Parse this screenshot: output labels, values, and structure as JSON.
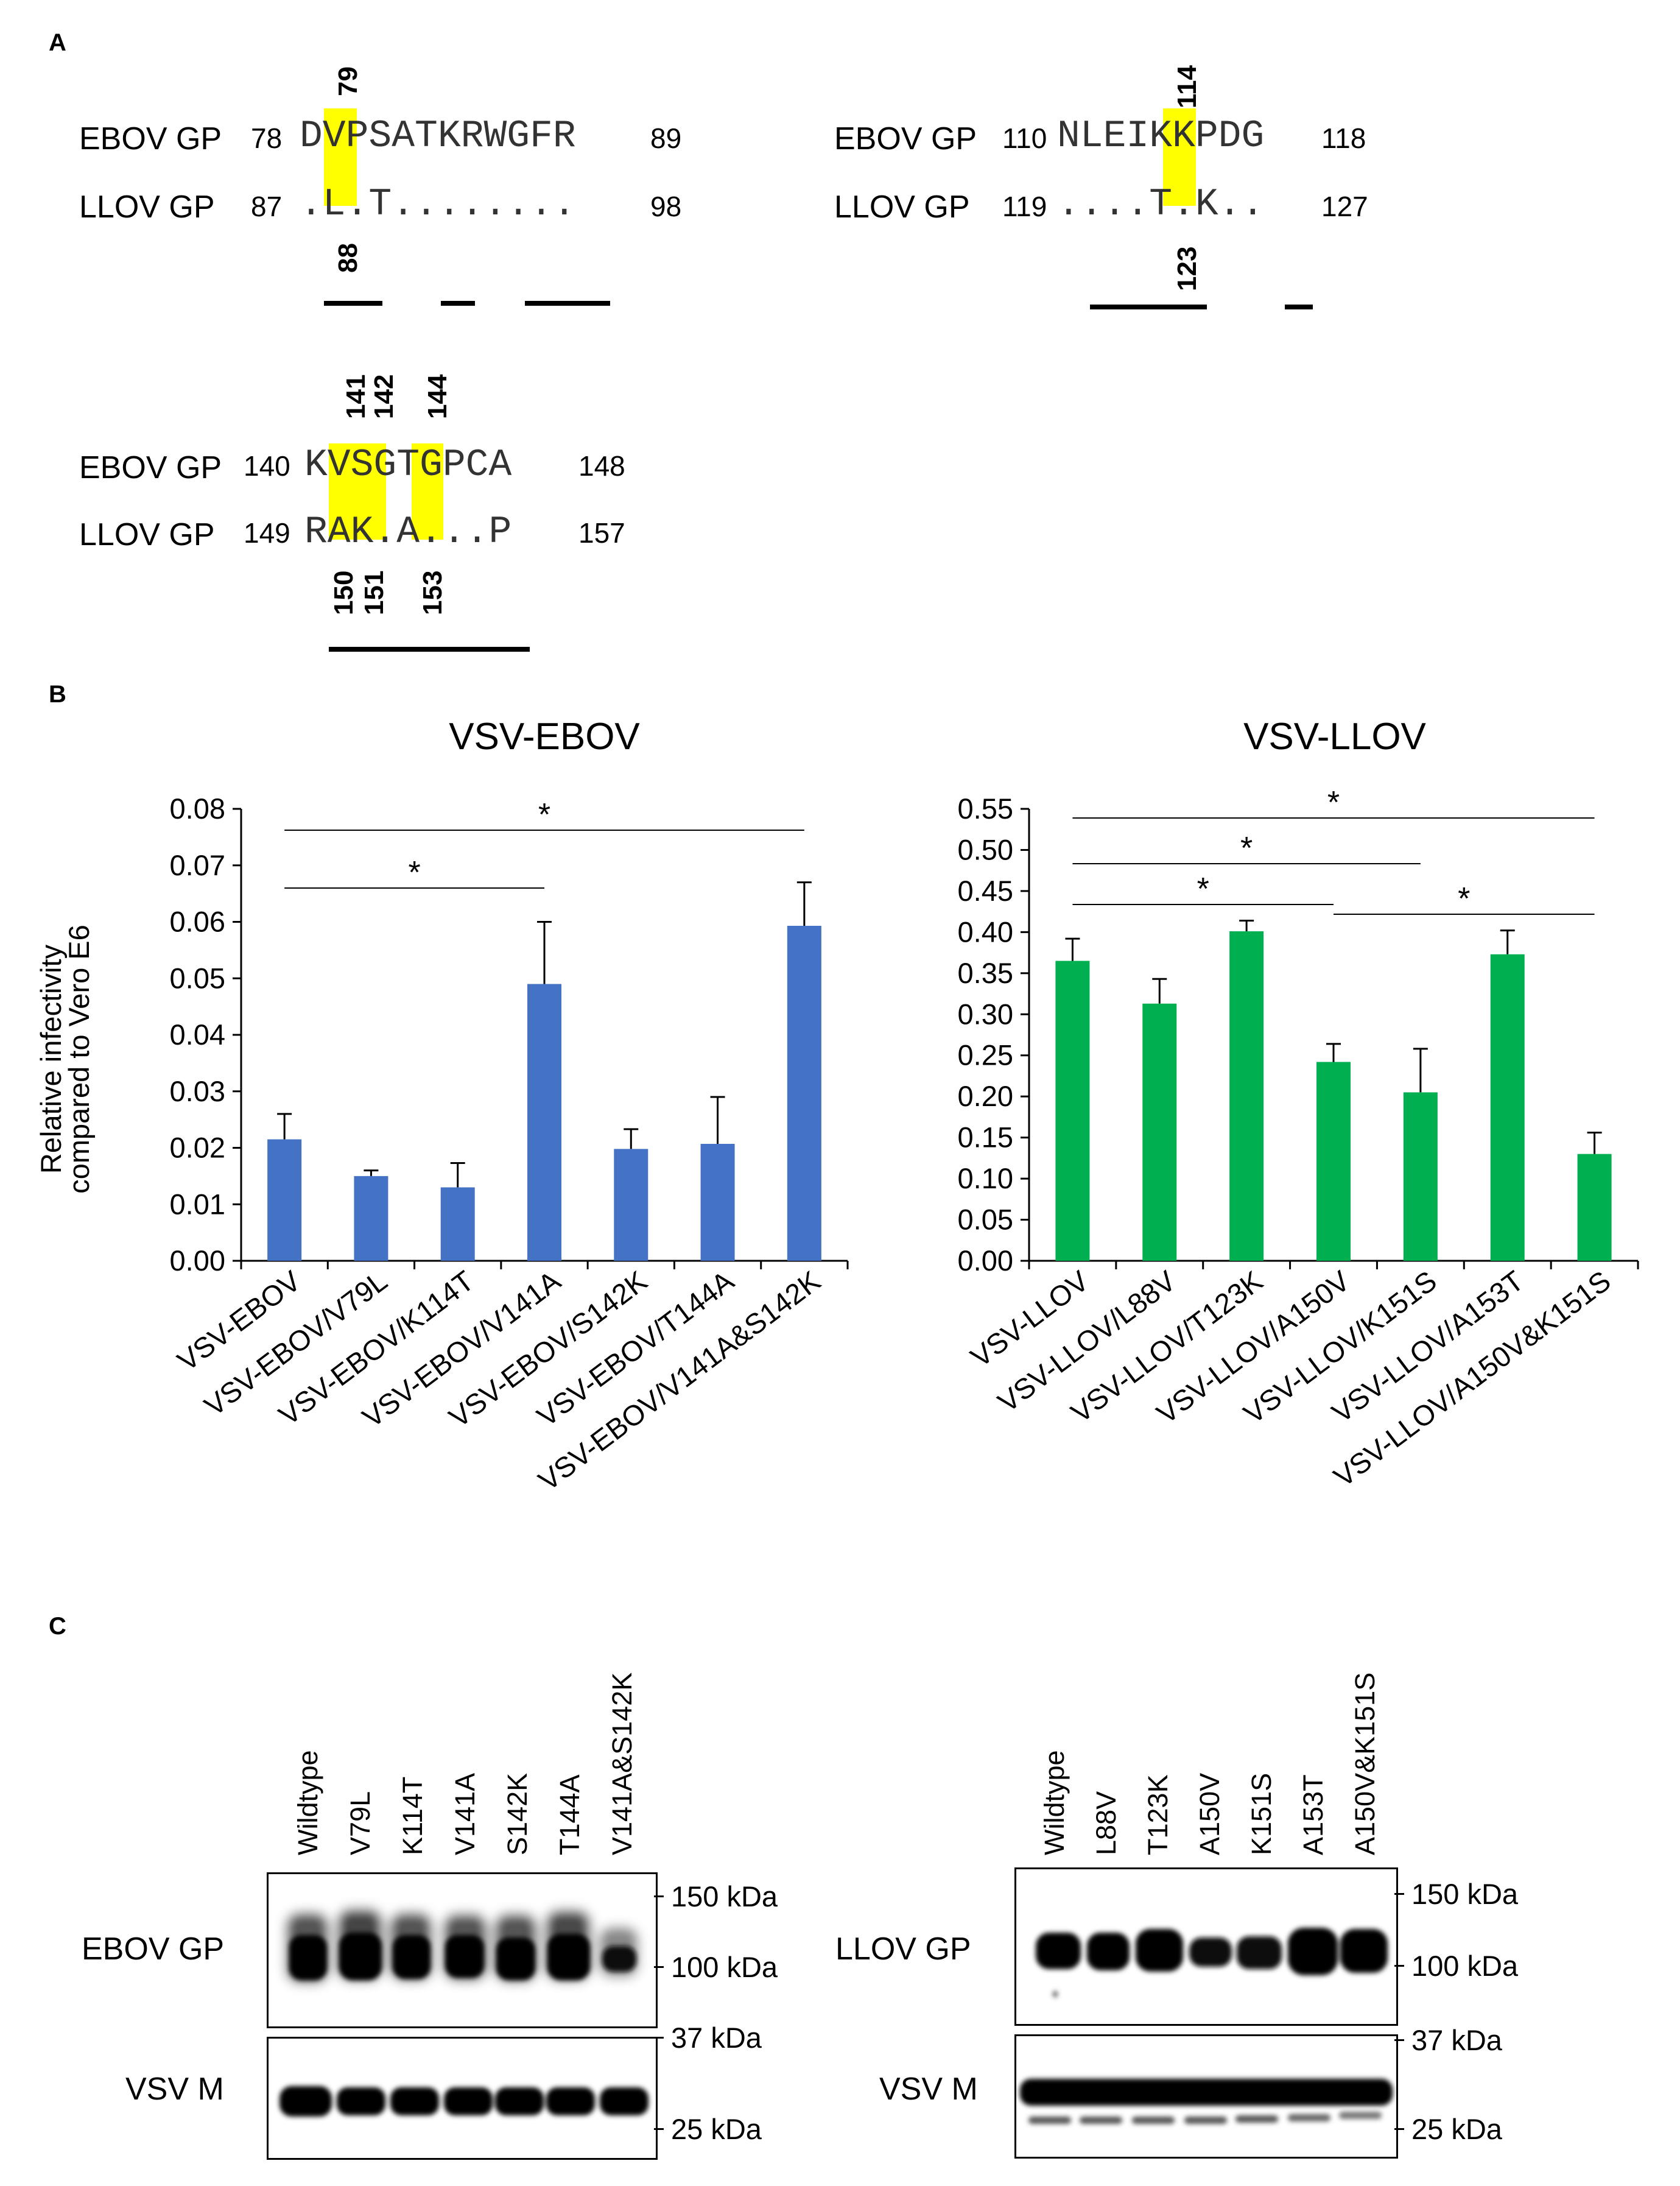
{
  "panels": {
    "a": "A",
    "b": "B",
    "c": "C"
  },
  "alignment": {
    "block1": {
      "row1": {
        "name": "EBOV GP",
        "start": "78",
        "seq": "DVPSATKRWGFR",
        "end": "89"
      },
      "row2": {
        "name": "LLOV GP",
        "start": "87",
        "seq": ".L.T........",
        "end": "98"
      },
      "top_pos": [
        "79"
      ],
      "bottom_pos": [
        "88"
      ]
    },
    "block2": {
      "row1": {
        "name": "EBOV GP",
        "start": "110",
        "seq": "NLEIKKPDG",
        "end": "118"
      },
      "row2": {
        "name": "LLOV GP",
        "start": "119",
        "seq": "....T.K..",
        "end": "127"
      },
      "top_pos": [
        "114"
      ],
      "bottom_pos": [
        "123"
      ]
    },
    "block3": {
      "row1": {
        "name": "EBOV GP",
        "start": "140",
        "seq": "KVSGTGPCA",
        "end": "148"
      },
      "row2": {
        "name": "LLOV GP",
        "start": "149",
        "seq": "RAK.A...P",
        "end": "157"
      },
      "top_pos": [
        "141",
        "142",
        "144"
      ],
      "bottom_pos": [
        "150",
        "151",
        "153"
      ]
    },
    "highlight_color": "#ffff00"
  },
  "chart_data": [
    {
      "type": "bar",
      "title": "VSV-EBOV",
      "ylabel": "Relative infectivity compared to Vero E6",
      "ylabel_lines": [
        "Relative infectivity",
        "compared to Vero E6"
      ],
      "ylim": [
        0,
        0.08
      ],
      "yticks": [
        "0.00",
        "0.01",
        "0.02",
        "0.03",
        "0.04",
        "0.05",
        "0.06",
        "0.07",
        "0.08"
      ],
      "categories": [
        "VSV-EBOV",
        "VSV-EBOV/V79L",
        "VSV-EBOV/K114T",
        "VSV-EBOV/V141A",
        "VSV-EBOV/S142K",
        "VSV-EBOV/T144A",
        "VSV-EBOV/V141A&S142K"
      ],
      "values": [
        0.0215,
        0.015,
        0.013,
        0.049,
        0.0198,
        0.0207,
        0.0593
      ],
      "errors": [
        0.0045,
        0.001,
        0.0043,
        0.011,
        0.0035,
        0.0083,
        0.0077
      ],
      "color": "#4472c4",
      "significance": [
        {
          "from": 0,
          "to": 3,
          "label": "*"
        },
        {
          "from": 0,
          "to": 6,
          "label": "*"
        }
      ]
    },
    {
      "type": "bar",
      "title": "VSV-LLOV",
      "ylim": [
        0,
        0.55
      ],
      "yticks": [
        "0.00",
        "0.05",
        "0.10",
        "0.15",
        "0.20",
        "0.25",
        "0.30",
        "0.35",
        "0.40",
        "0.45",
        "0.50",
        "0.55"
      ],
      "categories": [
        "VSV-LLOV",
        "VSV-LLOV/L88V",
        "VSV-LLOV/T123K",
        "VSV-LLOV/A150V",
        "VSV-LLOV/K151S",
        "VSV-LLOV/A153T",
        "VSV-LLOV/A150V&K151S"
      ],
      "values": [
        0.365,
        0.313,
        0.401,
        0.242,
        0.205,
        0.373,
        0.13
      ],
      "errors": [
        0.027,
        0.03,
        0.013,
        0.022,
        0.053,
        0.029,
        0.026
      ],
      "color": "#00b050",
      "significance": [
        {
          "from": 0,
          "to": 3,
          "label": "*"
        },
        {
          "from": 0,
          "to": 4,
          "label": "*"
        },
        {
          "from": 0,
          "to": 6,
          "label": "*"
        },
        {
          "from": 3,
          "to": 6,
          "label": "*"
        }
      ]
    }
  ],
  "blots": {
    "left": {
      "lanes": [
        "Wildtype",
        "V79L",
        "K114T",
        "V141A",
        "S142K",
        "T144A",
        "V141A&S142K"
      ],
      "gp_label": "EBOV GP",
      "m_label": "VSV M",
      "markers": {
        "m150": "150 kDa",
        "m100": "100 kDa",
        "m37": "37 kDa",
        "m25": "25 kDa"
      }
    },
    "right": {
      "lanes": [
        "Wildtype",
        "L88V",
        "T123K",
        "A150V",
        "K151S",
        "A153T",
        "A150V&K151S"
      ],
      "gp_label": "LLOV GP",
      "m_label": "VSV M",
      "markers": {
        "m150": "150 kDa",
        "m100": "100 kDa",
        "m37": "37 kDa",
        "m25": "25 kDa"
      }
    }
  }
}
